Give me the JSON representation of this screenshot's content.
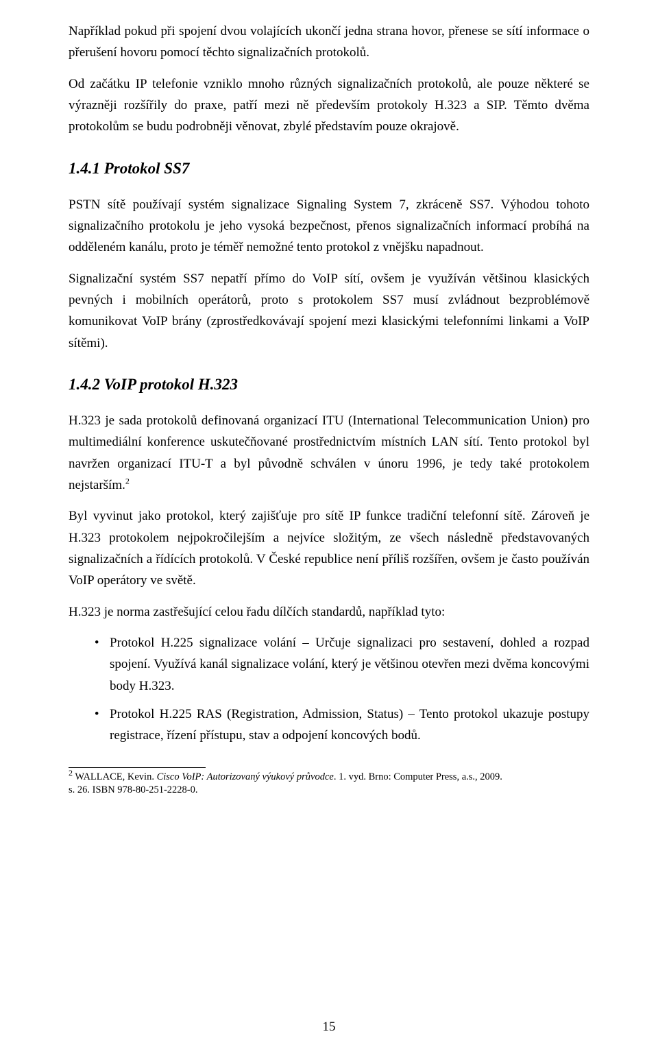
{
  "para1": "Například pokud při spojení dvou volajících ukončí jedna strana hovor, přenese se sítí informace o přerušení hovoru pomocí těchto signalizačních protokolů.",
  "para2": "Od začátku IP telefonie vzniklo mnoho různých signalizačních protokolů, ale pouze některé se výrazněji rozšířily do praxe, patří mezi ně především protokoly H.323 a SIP. Těmto dvěma protokolům se budu podrobněji věnovat, zbylé představím pouze okrajově.",
  "h141": "1.4.1 Protokol SS7",
  "para3": "PSTN sítě používají systém signalizace Signaling System 7, zkráceně SS7. Výhodou tohoto signalizačního protokolu je jeho vysoká bezpečnost, přenos signalizačních informací probíhá na odděleném kanálu, proto je téměř nemožné tento protokol z vnějšku napadnout.",
  "para4": "Signalizační systém SS7 nepatří přímo do VoIP sítí, ovšem je využíván většinou klasických pevných i mobilních operátorů, proto s protokolem SS7 musí zvládnout bezproblémově komunikovat VoIP brány (zprostředkovávají spojení mezi klasickými telefonními linkami a VoIP sítěmi).",
  "h142": "1.4.2 VoIP protokol H.323",
  "para5a": "H.323 je sada protokolů definovaná organizací ITU (International Telecommunication Union) pro multimediální konference uskutečňované prostřednictvím místních LAN sítí. Tento protokol byl navržen organizací  ITU-T a byl původně schválen v únoru 1996, je tedy také protokolem nejstarším.",
  "para5_fnref": "2",
  "para6": "Byl vyvinut jako protokol, který zajišťuje pro sítě IP funkce tradiční telefonní sítě. Zároveň je H.323 protokolem nejpokročilejším a nejvíce složitým, ze všech následně představovaných signalizačních a řídících protokolů. V České republice není příliš rozšířen, ovšem je často používán VoIP operátory ve světě.",
  "para7": "H.323 je norma zastřešující celou řadu dílčích standardů, například tyto:",
  "bullet1": "Protokol H.225 signalizace volání – Určuje signalizaci pro sestavení, dohled a rozpad spojení. Využívá kanál signalizace volání, který je většinou otevřen mezi dvěma koncovými body H.323.",
  "bullet2": "Protokol H.225 RAS (Registration, Admission, Status) – Tento protokol ukazuje postupy registrace, řízení přístupu,  stav a odpojení koncových bodů.",
  "fn_num": "2",
  "fn_author": " WALLACE, Kevin. ",
  "fn_title": "Cisco VoIP: Autorizovaný výukový průvodce",
  "fn_rest1": ". 1. vyd. Brno: Computer Press, a.s., 2009.",
  "fn_rest2": "  s. 26. ISBN 978-80-251-2228-0.",
  "page_no": "15"
}
